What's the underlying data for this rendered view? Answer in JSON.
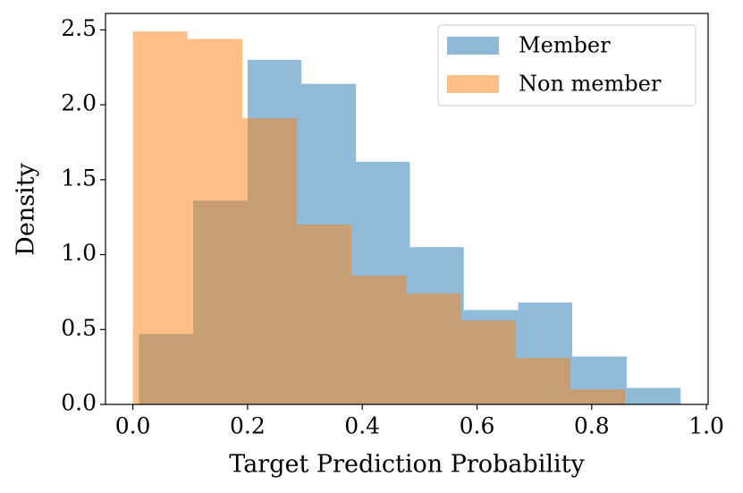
{
  "chart_data": {
    "type": "histogram",
    "xlabel": "Target Prediction Probability",
    "ylabel": "Density",
    "xlim": [
      -0.0477,
      1.003
    ],
    "ylim": [
      0,
      2.61
    ],
    "xticks": [
      {
        "value": 0,
        "label": "0.0"
      },
      0.2,
      0.4,
      0.6,
      0.8,
      {
        "value": 1,
        "label": "1.0"
      }
    ],
    "yticks": [
      {
        "value": 0,
        "label": "0.0"
      },
      0.5,
      {
        "value": 1,
        "label": "1.0"
      },
      1.5,
      {
        "value": 2,
        "label": "2.0"
      },
      2.5
    ],
    "legend": "upper right",
    "alpha": 0.5,
    "series": [
      {
        "name": "Member",
        "color": "#1f77b4",
        "bins": [
          0.011,
          0.105,
          0.2,
          0.294,
          0.389,
          0.483,
          0.577,
          0.672,
          0.766,
          0.861,
          0.955
        ],
        "values": [
          0.47,
          1.36,
          2.3,
          2.14,
          1.62,
          1.05,
          0.63,
          0.68,
          0.32,
          0.11
        ]
      },
      {
        "name": "Non member",
        "color": "#ff7f0e",
        "bins": [
          0,
          0.095,
          0.191,
          0.286,
          0.381,
          0.477,
          0.572,
          0.667,
          0.763,
          0.858
        ],
        "values": [
          2.49,
          2.44,
          1.91,
          1.2,
          0.86,
          0.74,
          0.56,
          0.31,
          0.1
        ]
      }
    ]
  }
}
